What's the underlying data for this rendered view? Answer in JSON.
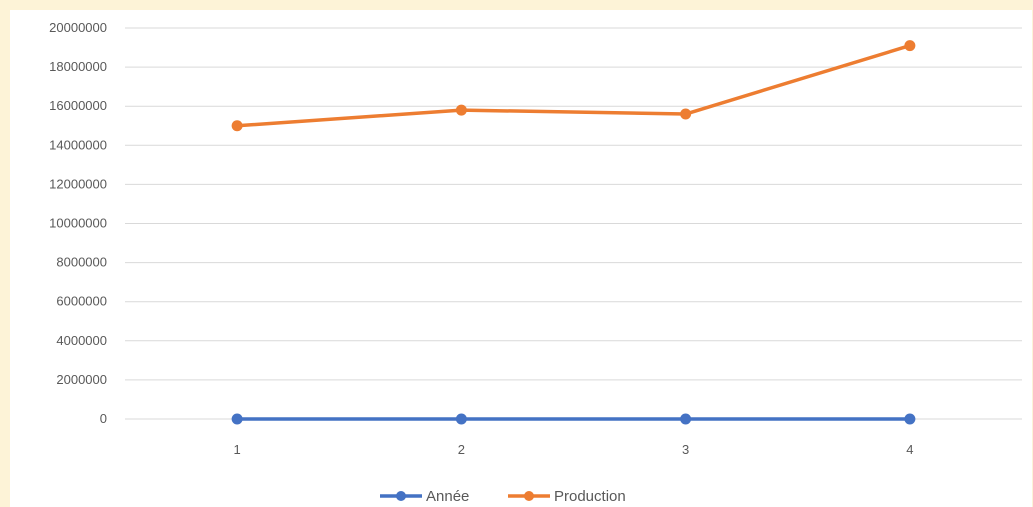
{
  "chart_data": {
    "type": "line",
    "title": "",
    "xlabel": "",
    "ylabel": "",
    "categories": [
      "1",
      "2",
      "3",
      "4"
    ],
    "ylim": [
      0,
      20000000
    ],
    "yticks": [
      0,
      2000000,
      4000000,
      6000000,
      8000000,
      10000000,
      12000000,
      14000000,
      16000000,
      18000000,
      20000000
    ],
    "ytick_labels": [
      "0",
      "2000000",
      "4000000",
      "6000000",
      "8000000",
      "10000000",
      "12000000",
      "14000000",
      "16000000",
      "18000000",
      "20000000"
    ],
    "grid": true,
    "legend_position": "bottom",
    "series": [
      {
        "name": "Année",
        "color": "#4472C4",
        "values": [
          2016,
          2017,
          2018,
          2019
        ]
      },
      {
        "name": "Production",
        "color": "#ED7D31",
        "values": [
          15000000,
          15800000,
          15600000,
          19100000
        ]
      }
    ]
  }
}
